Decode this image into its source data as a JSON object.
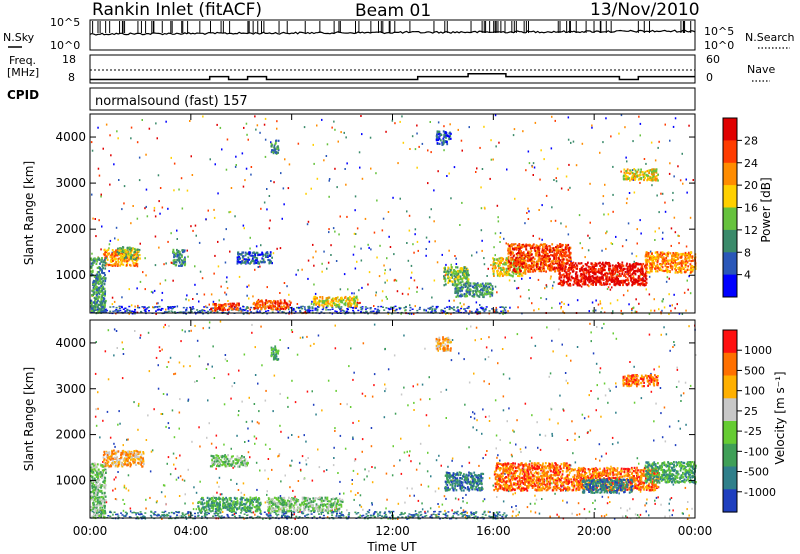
{
  "chart_data": [
    {
      "type": "line",
      "panel": "header-noise",
      "title": "Rankin Inlet (fitACF)",
      "beam": "Beam 01",
      "date": "13/Nov/2010",
      "left_label": "N.Sky",
      "right_label": "N.Search",
      "left_ticks": [
        "10^5",
        "10^0"
      ],
      "right_ticks": [
        "10^5",
        "10^0"
      ]
    },
    {
      "type": "line",
      "panel": "header-frequency",
      "left_label_line1": "Freq.",
      "left_label_line2": "[MHz]",
      "right_label": "Nave",
      "left_ticks": [
        "18",
        "8"
      ],
      "right_ticks": [
        "60",
        "0"
      ],
      "series": [
        {
          "x": [
            "00:00",
            "04:45",
            "04:45",
            "05:30",
            "05:30",
            "06:15",
            "06:15",
            "07:00",
            "07:00",
            "13:00",
            "13:00",
            "15:00",
            "15:00",
            "16:30",
            "16:30",
            "21:00",
            "21:00",
            "21:45",
            "21:45",
            "24:00"
          ],
          "y": [
            9.5,
            9.5,
            10.8,
            10.8,
            9.5,
            9.5,
            10.8,
            10.8,
            9.5,
            9.5,
            10.8,
            10.8,
            12,
            12,
            10.8,
            10.8,
            9.5,
            9.5,
            10.8,
            10.8
          ]
        }
      ]
    },
    {
      "type": "scatter",
      "panel": "power",
      "program_label": "CPID",
      "program": "normalsound (fast) 157",
      "ylabel": "Slant Range [km]",
      "y_ticks": [
        "1000",
        "2000",
        "3000",
        "4000"
      ],
      "ylim": [
        180,
        4500
      ],
      "colorbar_label": "Power [dB]",
      "colorbar_ticks": [
        "28",
        "24",
        "20",
        "16",
        "12",
        "8",
        "4"
      ],
      "colors": [
        "#0000ff",
        "#2a57b8",
        "#3a8a6a",
        "#66c23d",
        "#ffd000",
        "#ff8c00",
        "#ff3c00",
        "#e00000"
      ],
      "blobs": [
        {
          "t": 1.2,
          "r": 1400,
          "dt": 1.4,
          "dr": 350,
          "lvl": 5
        },
        {
          "t": 1.5,
          "r": 1500,
          "dt": 0.9,
          "dr": 250,
          "lvl": 3
        },
        {
          "t": 3.5,
          "r": 1400,
          "dt": 0.5,
          "dr": 350,
          "lvl": 2
        },
        {
          "t": 5.3,
          "r": 330,
          "dt": 1.2,
          "dr": 160,
          "lvl": 6
        },
        {
          "t": 6.5,
          "r": 1400,
          "dt": 1.4,
          "dr": 250,
          "lvl": 1
        },
        {
          "t": 7.2,
          "r": 380,
          "dt": 1.5,
          "dr": 200,
          "lvl": 6
        },
        {
          "t": 9.7,
          "r": 450,
          "dt": 1.8,
          "dr": 220,
          "lvl": 4
        },
        {
          "t": 14.5,
          "r": 1000,
          "dt": 1.0,
          "dr": 400,
          "lvl": 3
        },
        {
          "t": 15.2,
          "r": 700,
          "dt": 1.5,
          "dr": 300,
          "lvl": 2
        },
        {
          "t": 16.6,
          "r": 1200,
          "dt": 1.3,
          "dr": 400,
          "lvl": 4
        },
        {
          "t": 17.8,
          "r": 1400,
          "dt": 2.5,
          "dr": 600,
          "lvl": 6
        },
        {
          "t": 20.3,
          "r": 1050,
          "dt": 3.5,
          "dr": 500,
          "lvl": 7
        },
        {
          "t": 23.0,
          "r": 1300,
          "dt": 2.0,
          "dr": 450,
          "lvl": 5
        },
        {
          "t": 21.8,
          "r": 3200,
          "dt": 1.4,
          "dr": 250,
          "lvl": 4
        },
        {
          "t": 7.3,
          "r": 3800,
          "dt": 0.3,
          "dr": 300,
          "lvl": 2
        },
        {
          "t": 14.0,
          "r": 4000,
          "dt": 0.6,
          "dr": 300,
          "lvl": 1
        },
        {
          "t": 0.3,
          "r": 800,
          "dt": 0.6,
          "dr": 1200,
          "lvl": 2
        }
      ]
    },
    {
      "type": "scatter",
      "panel": "velocity",
      "ylabel": "Slant Range [km]",
      "y_ticks": [
        "1000",
        "2000",
        "3000",
        "4000"
      ],
      "ylim": [
        180,
        4500
      ],
      "colorbar_label": "Velocity [m s⁻¹]",
      "colorbar_ticks": [
        "1000",
        "500",
        "100",
        "25",
        "-25",
        "-100",
        "-500",
        "-1000"
      ],
      "colors": [
        "#1f3fbf",
        "#2f7f8a",
        "#3f9f57",
        "#66cc33",
        "#c8c8c8",
        "#ffb000",
        "#ff7000",
        "#ff1010"
      ],
      "x_ticks": [
        "00:00",
        "04:00",
        "08:00",
        "12:00",
        "16:00",
        "20:00",
        "00:00"
      ],
      "xlabel": "Time UT",
      "blobs": [
        {
          "t": 1.3,
          "r": 1500,
          "dt": 1.6,
          "dr": 350,
          "lvl": 5
        },
        {
          "t": 5.5,
          "r": 1450,
          "dt": 1.5,
          "dr": 250,
          "lvl": 3
        },
        {
          "t": 5.5,
          "r": 500,
          "dt": 2.5,
          "dr": 300,
          "lvl": 2
        },
        {
          "t": 8.5,
          "r": 500,
          "dt": 3.0,
          "dr": 300,
          "lvl": 3
        },
        {
          "t": 14.8,
          "r": 1000,
          "dt": 1.5,
          "dr": 400,
          "lvl": 1
        },
        {
          "t": 17.5,
          "r": 1100,
          "dt": 3.0,
          "dr": 600,
          "lvl": 6
        },
        {
          "t": 20.8,
          "r": 1050,
          "dt": 3.5,
          "dr": 500,
          "lvl": 6
        },
        {
          "t": 20.5,
          "r": 900,
          "dt": 2.0,
          "dr": 300,
          "lvl": 1
        },
        {
          "t": 23.0,
          "r": 1200,
          "dt": 2.0,
          "dr": 450,
          "lvl": 2
        },
        {
          "t": 21.8,
          "r": 3200,
          "dt": 1.4,
          "dr": 250,
          "lvl": 6
        },
        {
          "t": 7.3,
          "r": 3800,
          "dt": 0.3,
          "dr": 300,
          "lvl": 2
        },
        {
          "t": 14.0,
          "r": 4000,
          "dt": 0.6,
          "dr": 300,
          "lvl": 5
        },
        {
          "t": 0.3,
          "r": 800,
          "dt": 0.6,
          "dr": 1200,
          "lvl": 3
        }
      ]
    }
  ]
}
